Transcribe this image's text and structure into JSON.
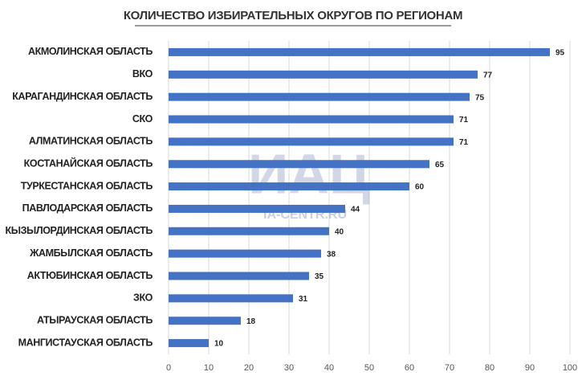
{
  "chart_data": {
    "type": "bar",
    "orientation": "horizontal",
    "title": "КОЛИЧЕСТВО ИЗБИРАТЕЛЬНЫХ ОКРУГОВ ПО РЕГИОНАМ",
    "categories": [
      "АКМОЛИНСКАЯ ОБЛАСТЬ",
      "ВКО",
      "КАРАГАНДИНСКАЯ ОБЛАСТЬ",
      "СКО",
      "АЛМАТИНСКАЯ ОБЛАСТЬ",
      "КОСТАНАЙСКАЯ ОБЛАСТЬ",
      "ТУРКЕСТАНСКАЯ ОБЛАСТЬ",
      "ПАВЛОДАРСКАЯ ОБЛАСТЬ",
      "КЫЗЫЛОРДИНСКАЯ ОБЛАСТЬ",
      "ЖАМБЫЛСКАЯ ОБЛАСТЬ",
      "АКТЮБИНСКАЯ ОБЛАСТЬ",
      "ЗКО",
      "АТЫРАУСКАЯ ОБЛАСТЬ",
      "МАНГИСТАУСКАЯ ОБЛАСТЬ"
    ],
    "values": [
      95,
      77,
      75,
      71,
      71,
      65,
      60,
      44,
      40,
      38,
      35,
      31,
      18,
      10
    ],
    "color": "#4472c4",
    "xlim": [
      0,
      100
    ],
    "xticks": [
      0,
      10,
      20,
      30,
      40,
      50,
      60,
      70,
      80,
      90,
      100
    ],
    "grid": true,
    "watermark": {
      "logo": "ИАЦ",
      "url": "IA-CENTR.RU"
    }
  }
}
